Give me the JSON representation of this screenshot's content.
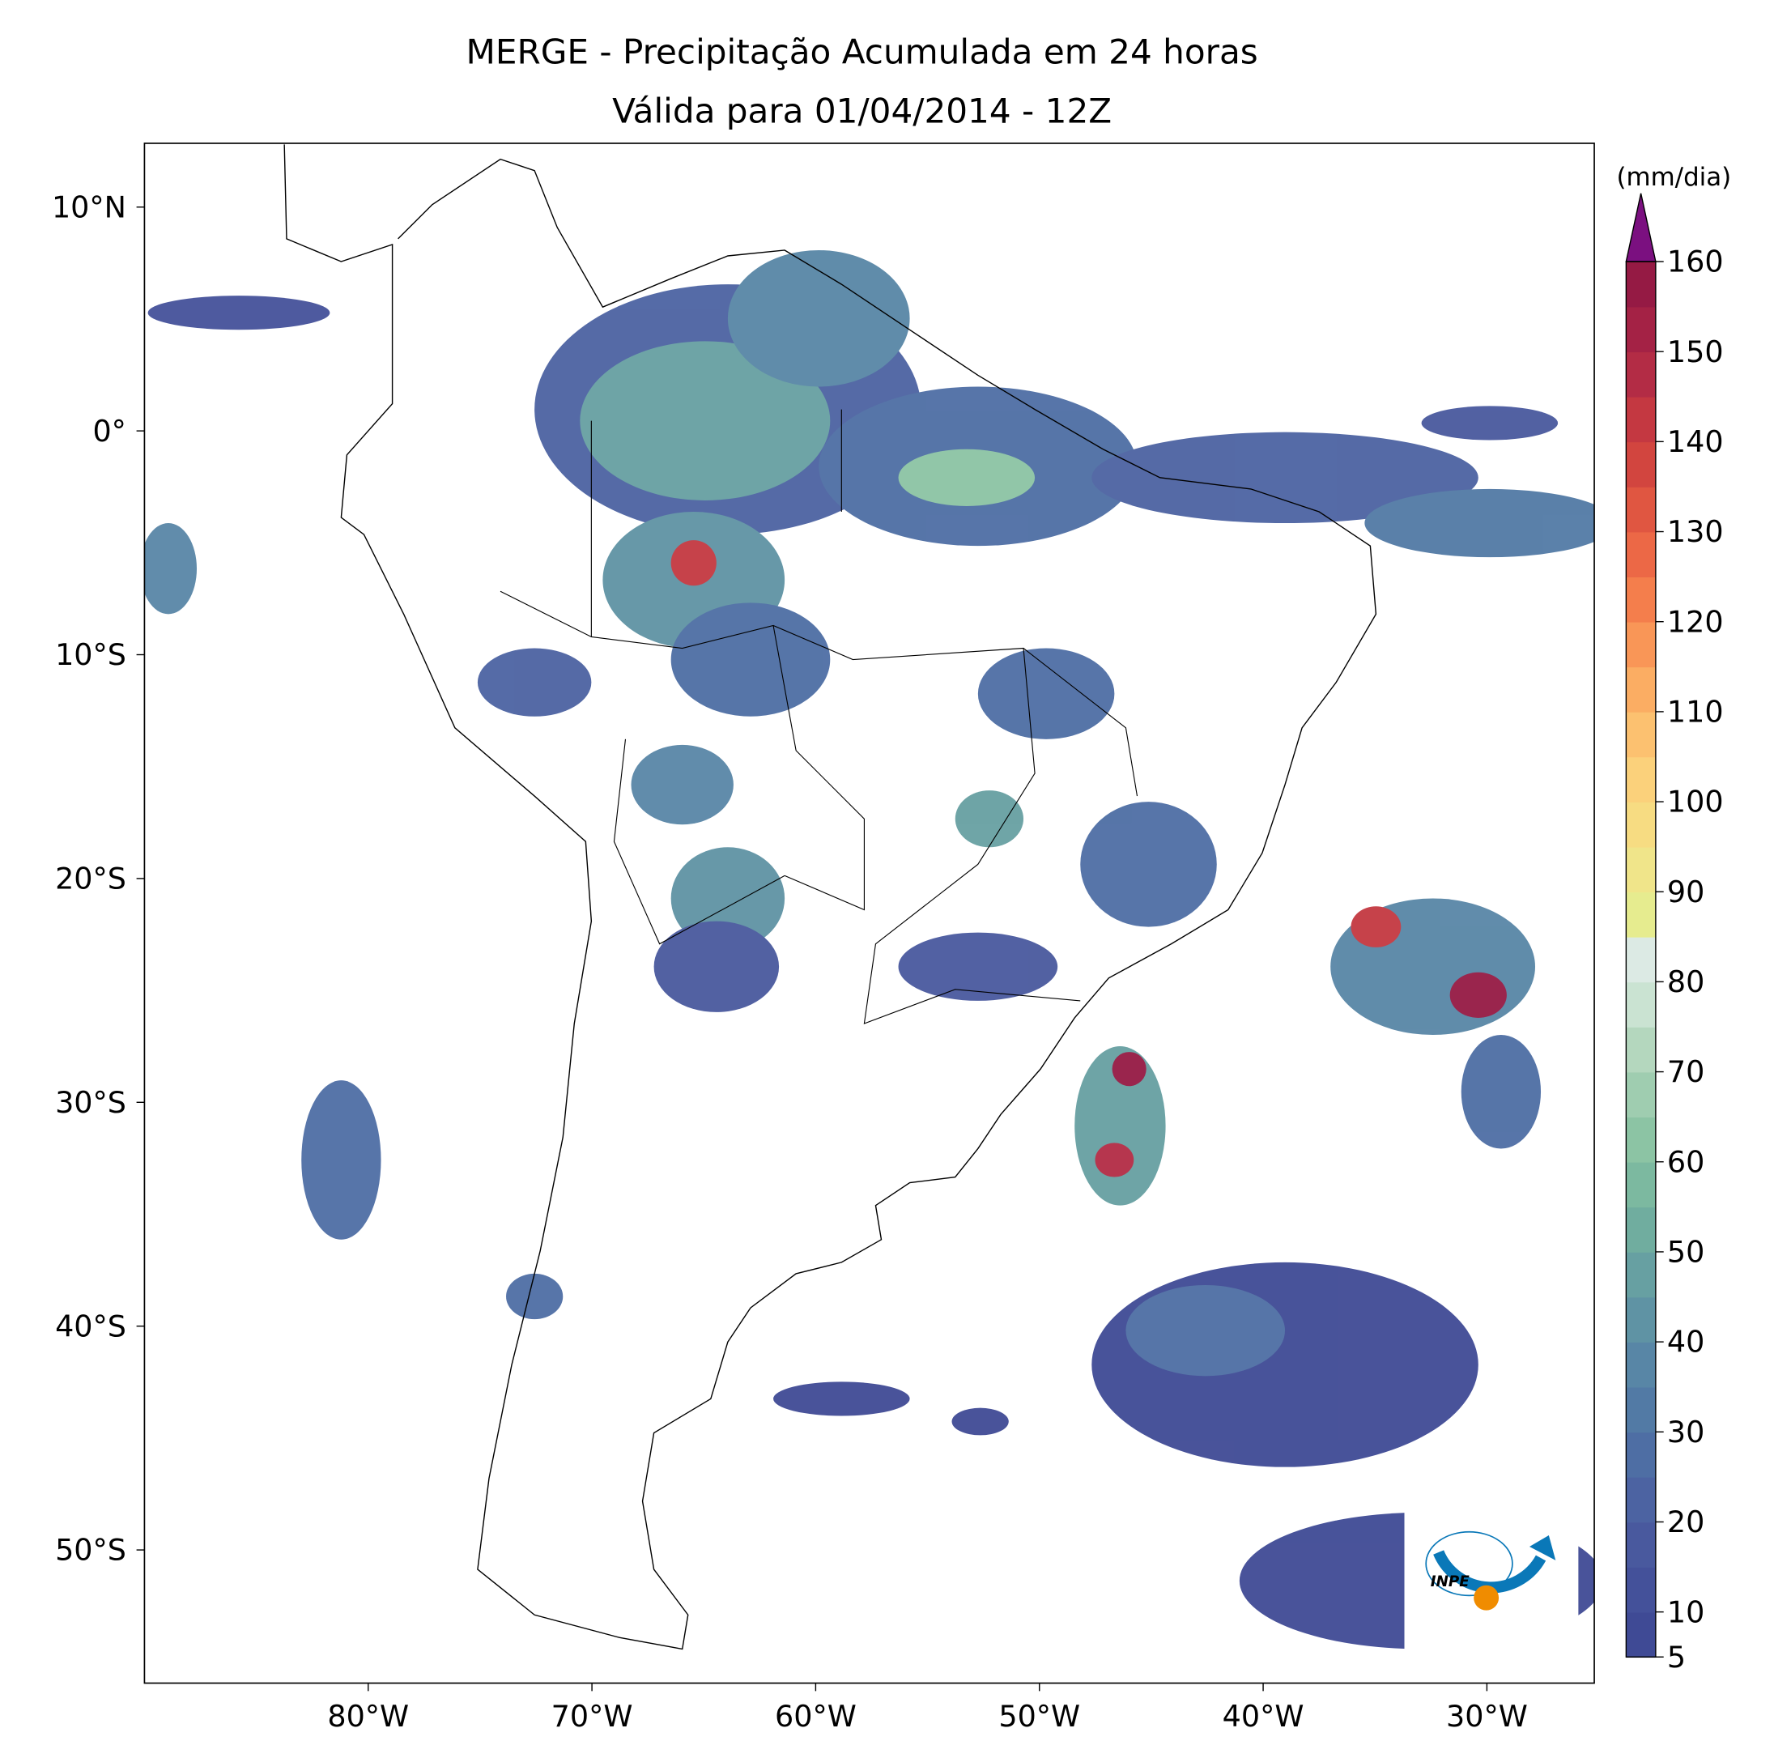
{
  "chart_data": {
    "type": "map",
    "title": "MERGE - Precipitação Acumulada em 24 horas",
    "subtitle": "Válida para 01/04/2014 - 12Z",
    "xlim": [
      -90,
      -25.2
    ],
    "ylim": [
      -55.95,
      12.85
    ],
    "xticks": [
      {
        "value": -80,
        "label": "80°W"
      },
      {
        "value": -70,
        "label": "70°W"
      },
      {
        "value": -60,
        "label": "60°W"
      },
      {
        "value": -50,
        "label": "50°W"
      },
      {
        "value": -40,
        "label": "40°W"
      },
      {
        "value": -30,
        "label": "30°W"
      }
    ],
    "yticks": [
      {
        "value": 10,
        "label": "10°N"
      },
      {
        "value": 0,
        "label": "0°"
      },
      {
        "value": -10,
        "label": "10°S"
      },
      {
        "value": -20,
        "label": "20°S"
      },
      {
        "value": -30,
        "label": "30°S"
      },
      {
        "value": -40,
        "label": "40°S"
      },
      {
        "value": -50,
        "label": "50°S"
      }
    ],
    "colorbar": {
      "label": "(mm/dia)",
      "lim": [
        5,
        160
      ],
      "ticks": [
        5,
        10,
        20,
        30,
        40,
        50,
        60,
        70,
        80,
        90,
        100,
        110,
        120,
        130,
        140,
        150,
        160
      ],
      "colors": [
        "#3f4a95",
        "#44519a",
        "#49599e",
        "#4c63a2",
        "#4e6ea4",
        "#527aa5",
        "#5886a6",
        "#5f93a4",
        "#67a0a2",
        "#70ad9f",
        "#7cb9a0",
        "#8cc4a4",
        "#9fcdb0",
        "#b4d7be",
        "#cae3d2",
        "#dceae4",
        "#e6ec8f",
        "#f0e58a",
        "#f7dc82",
        "#fbd17b",
        "#fcc170",
        "#fbad63",
        "#f99657",
        "#f47e4c",
        "#ec6846",
        "#e05641",
        "#d2453f",
        "#c43841",
        "#b32c45",
        "#a42245",
        "#951a44"
      ],
      "extend_color": "#7b1080"
    },
    "logo_text": "INPE"
  }
}
